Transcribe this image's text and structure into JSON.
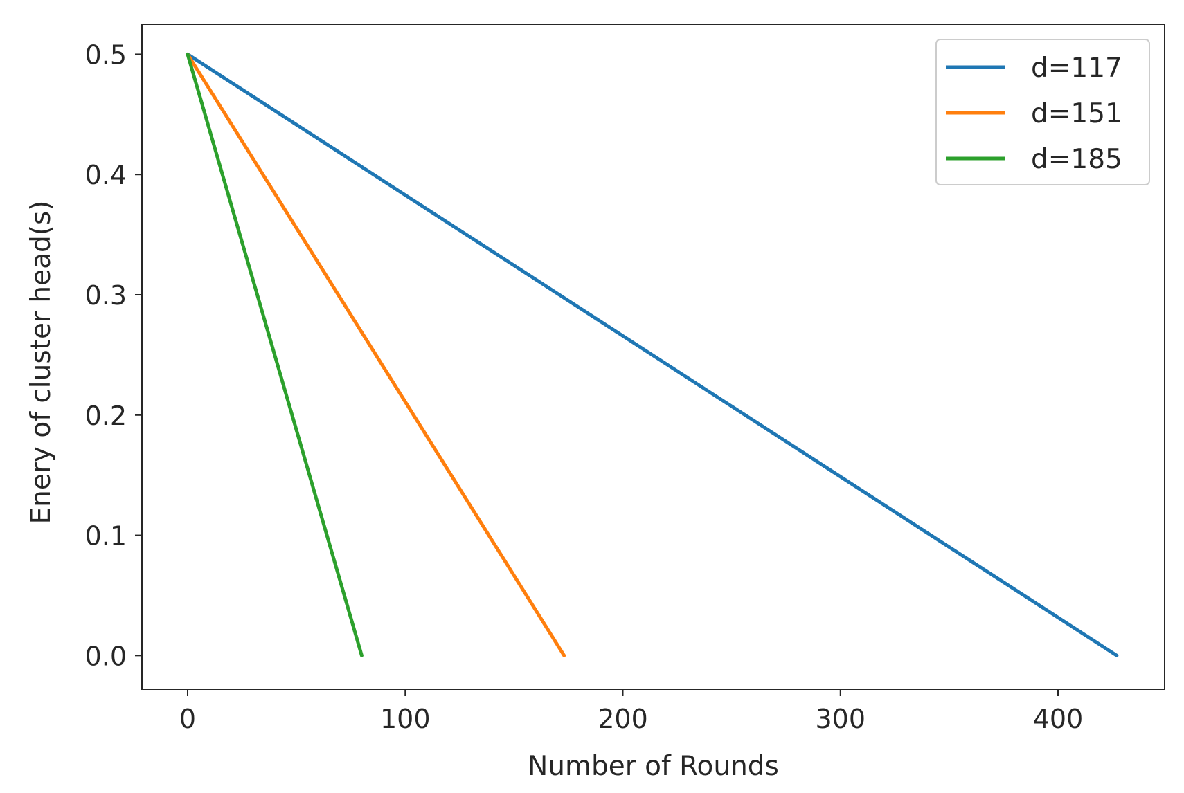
{
  "chart_data": {
    "type": "line",
    "title": "",
    "xlabel": "Number of Rounds",
    "ylabel": "Enery of cluster head(s)",
    "xlim": [
      -21,
      449
    ],
    "ylim": [
      -0.028,
      0.525
    ],
    "xticks": [
      0,
      100,
      200,
      300,
      400
    ],
    "yticks": [
      0.0,
      0.1,
      0.2,
      0.3,
      0.4,
      0.5
    ],
    "xtick_labels": [
      "0",
      "100",
      "200",
      "300",
      "400"
    ],
    "ytick_labels": [
      "0.0",
      "0.1",
      "0.2",
      "0.3",
      "0.4",
      "0.5"
    ],
    "grid": false,
    "legend_position": "top-right",
    "series": [
      {
        "name": "d=117",
        "color": "#1f77b4",
        "x": [
          0,
          427
        ],
        "y": [
          0.5,
          0.0
        ]
      },
      {
        "name": "d=151",
        "color": "#ff7f0e",
        "x": [
          0,
          173
        ],
        "y": [
          0.5,
          0.0
        ]
      },
      {
        "name": "d=185",
        "color": "#2ca02c",
        "x": [
          0,
          80
        ],
        "y": [
          0.5,
          0.0
        ]
      }
    ]
  }
}
